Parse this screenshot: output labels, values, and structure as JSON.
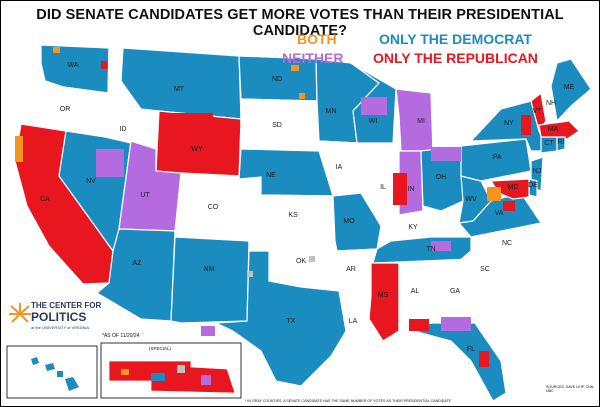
{
  "title": "DID SENATE CANDIDATES GET MORE VOTES THAN THEIR PRESIDENTIAL CANDIDATE?",
  "legend": {
    "both": {
      "label": "BOTH",
      "color": "#f7941d"
    },
    "neither": {
      "label": "NEITHER",
      "color": "#b56be0"
    },
    "only_dem": {
      "label": "ONLY THE DEMOCRAT",
      "color": "#1a8cbf"
    },
    "only_rep": {
      "label": "ONLY THE REPUBLICAN",
      "color": "#e8161f"
    }
  },
  "colors": {
    "no_race": "#ffffff",
    "gray": "#c0c0c0"
  },
  "state_labels": [
    "WA",
    "OR",
    "ID",
    "MT",
    "WY",
    "ND",
    "SD",
    "NE",
    "KS",
    "CO",
    "UT",
    "NV",
    "CA",
    "AZ",
    "NM",
    "TX",
    "OK",
    "MN",
    "IA",
    "MO",
    "AR",
    "LA",
    "WI",
    "IL",
    "MS",
    "AL",
    "GA",
    "FL",
    "SC",
    "NC",
    "TN",
    "KY",
    "IN",
    "MI",
    "OH",
    "WV",
    "VA",
    "PA",
    "NY",
    "VT",
    "NH",
    "ME",
    "MA",
    "CT",
    "NJ",
    "DE",
    "MD",
    "RI"
  ],
  "logo": {
    "line1": "THE CENTER FOR",
    "line2": "POLITICS",
    "line3": "at the UNIVERSITY of VIRGINIA"
  },
  "as_of": "*AS OF 11/20/24",
  "special": "(SPECIAL)",
  "footnote": "* IN GRAY COUNTIES, A SENATE CANDIDATE HAS THE SAME NUMBER OF VOTES AS THEIR PRESIDENTIAL CANDIDATE",
  "sources": "SOURCES: DAVE LEIP, CNN, NBC"
}
